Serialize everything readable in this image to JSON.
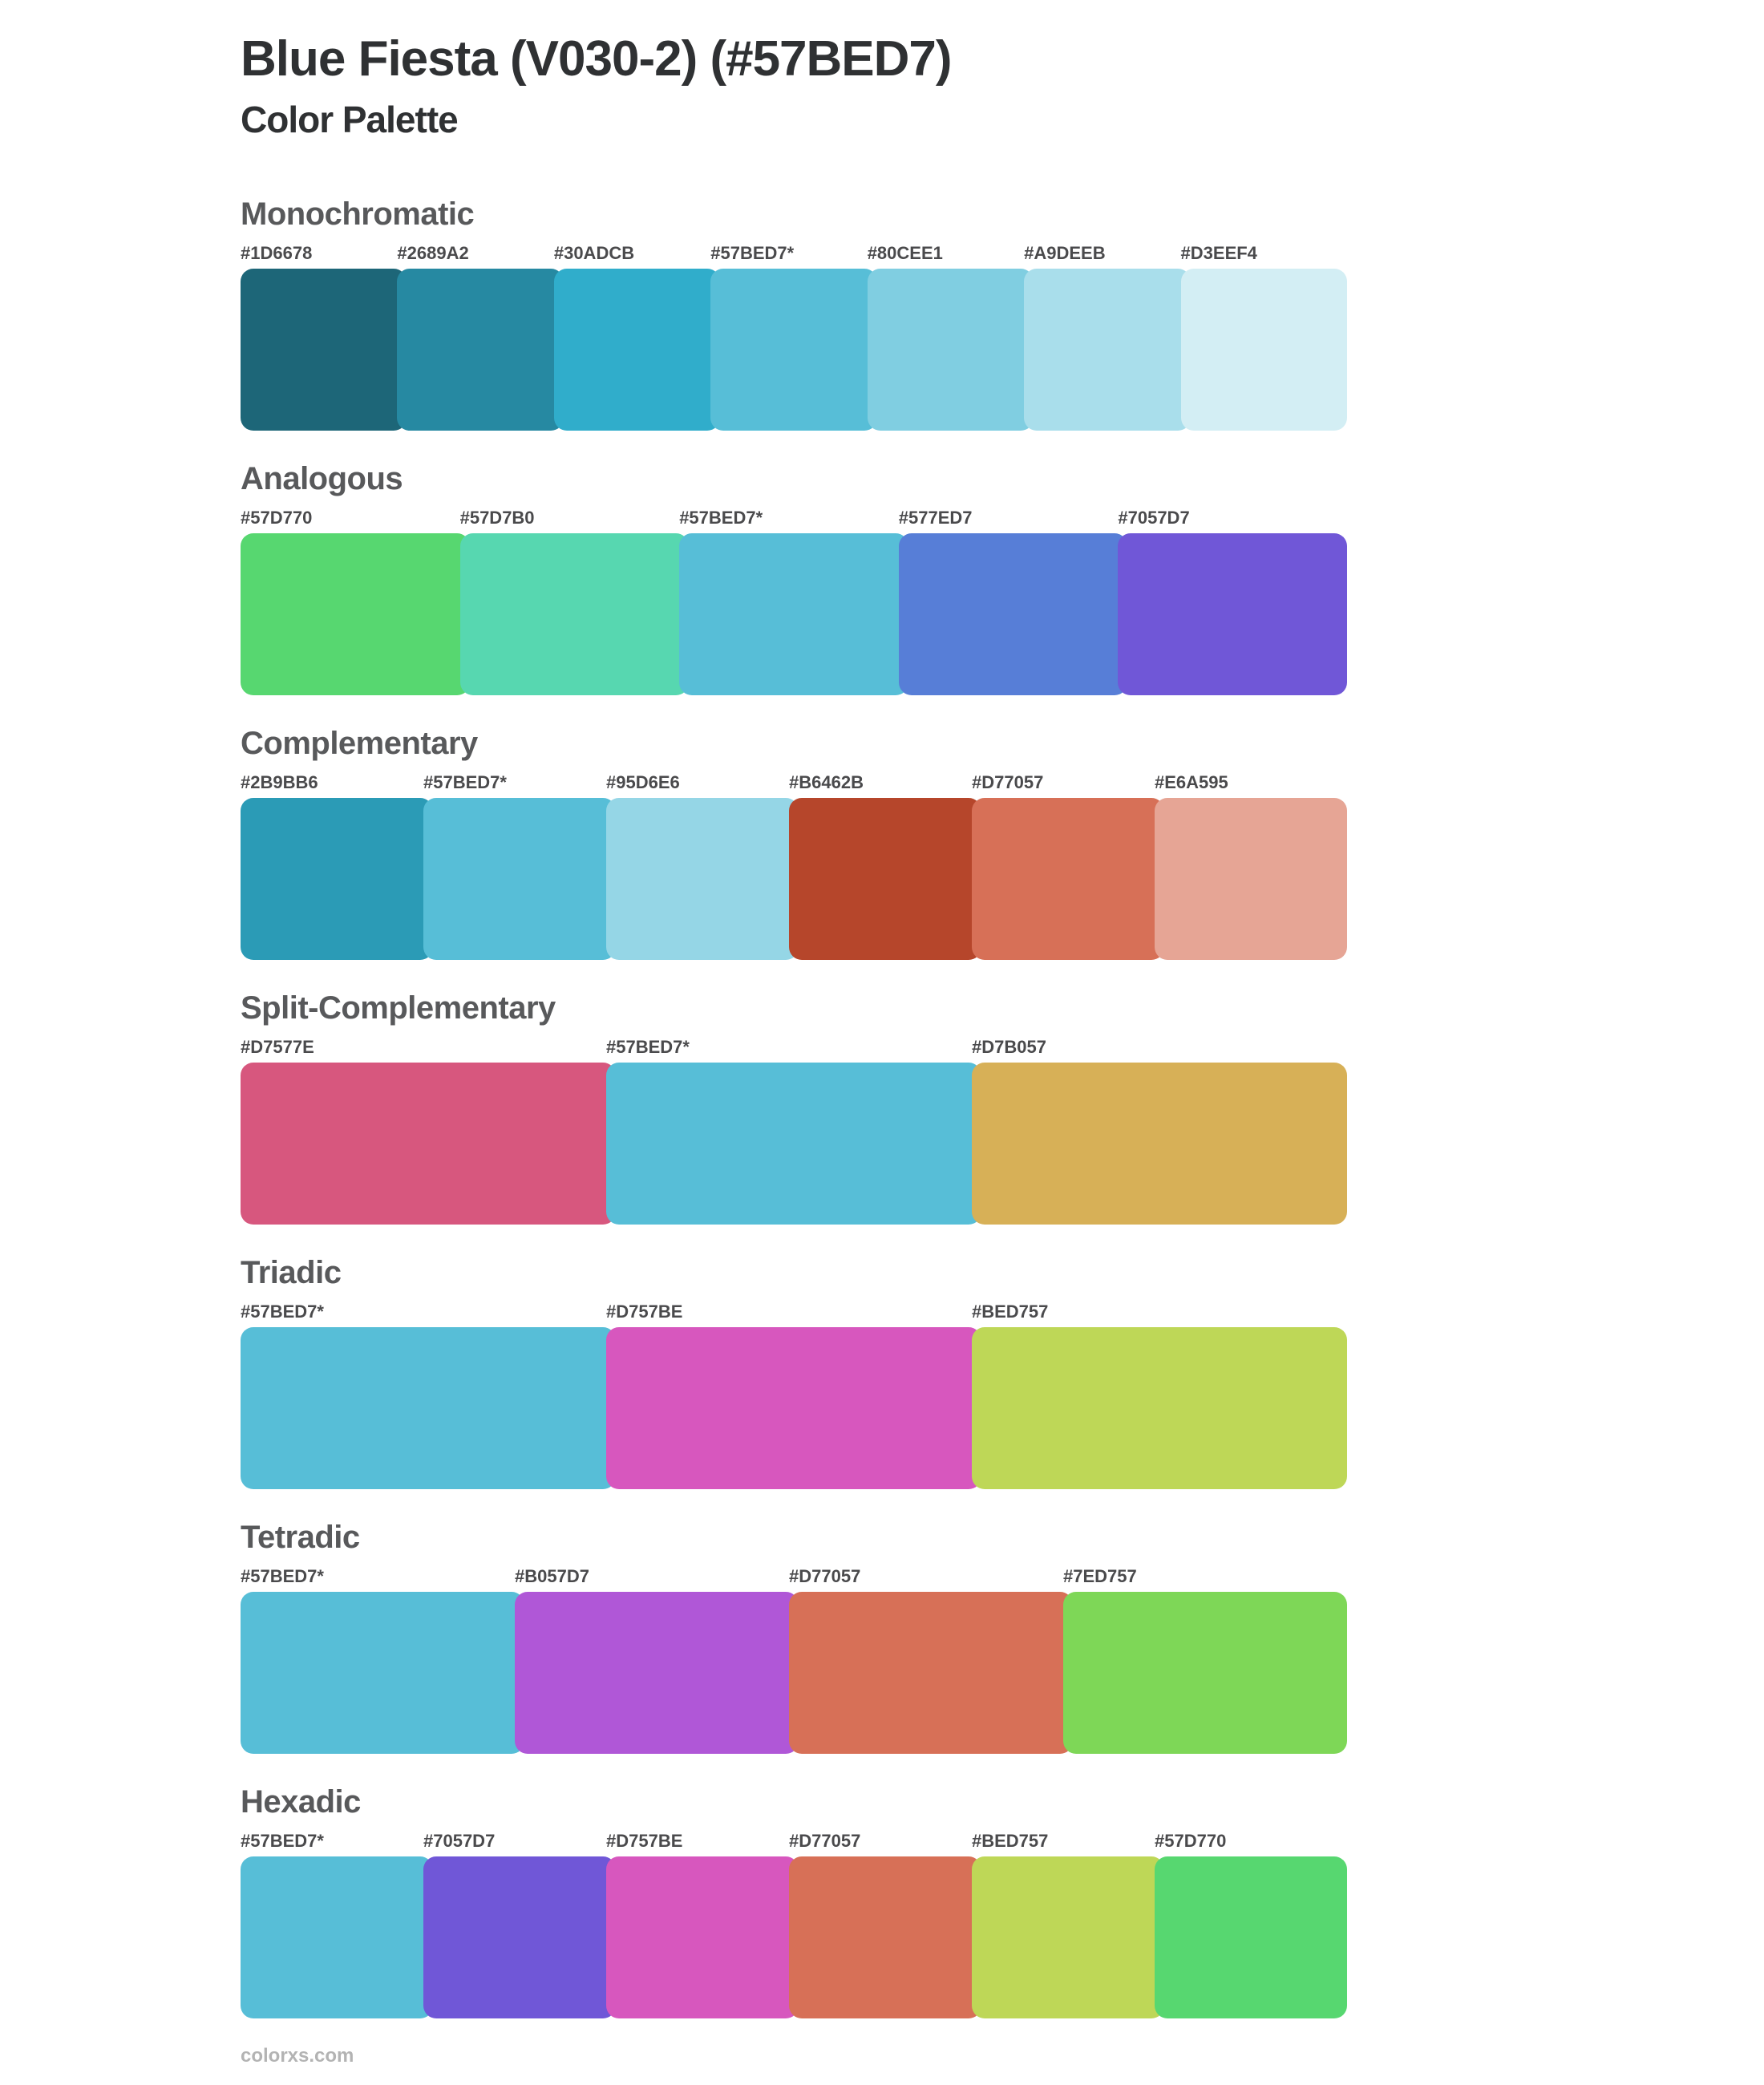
{
  "page": {
    "title": "Blue Fiesta (V030-2) (#57BED7)",
    "subtitle": "Color Palette",
    "footer": "colorxs.com",
    "base_color": "#57BED7",
    "background": "#ffffff",
    "title_color": "#2f3133",
    "heading_color": "#58595b",
    "label_color": "#4a4a4c",
    "footer_color": "#b3b3b3"
  },
  "sections": [
    {
      "name": "Monochromatic",
      "swatches": [
        {
          "label": "#1D6678",
          "color": "#1D6678"
        },
        {
          "label": "#2689A2",
          "color": "#2689A2"
        },
        {
          "label": "#30ADCB",
          "color": "#30ADCB"
        },
        {
          "label": "#57BED7*",
          "color": "#57BED7"
        },
        {
          "label": "#80CEE1",
          "color": "#80CEE1"
        },
        {
          "label": "#A9DEEB",
          "color": "#A9DEEB"
        },
        {
          "label": "#D3EEF4",
          "color": "#D3EEF4"
        }
      ]
    },
    {
      "name": "Analogous",
      "swatches": [
        {
          "label": "#57D770",
          "color": "#57D770"
        },
        {
          "label": "#57D7B0",
          "color": "#57D7B0"
        },
        {
          "label": "#57BED7*",
          "color": "#57BED7"
        },
        {
          "label": "#577ED7",
          "color": "#577ED7"
        },
        {
          "label": "#7057D7",
          "color": "#7057D7"
        }
      ]
    },
    {
      "name": "Complementary",
      "swatches": [
        {
          "label": "#2B9BB6",
          "color": "#2B9BB6"
        },
        {
          "label": "#57BED7*",
          "color": "#57BED7"
        },
        {
          "label": "#95D6E6",
          "color": "#95D6E6"
        },
        {
          "label": "#B6462B",
          "color": "#B6462B"
        },
        {
          "label": "#D77057",
          "color": "#D77057"
        },
        {
          "label": "#E6A595",
          "color": "#E6A595"
        }
      ]
    },
    {
      "name": "Split-Complementary",
      "swatches": [
        {
          "label": "#D7577E",
          "color": "#D7577E"
        },
        {
          "label": "#57BED7*",
          "color": "#57BED7"
        },
        {
          "label": "#D7B057",
          "color": "#D7B057"
        }
      ]
    },
    {
      "name": "Triadic",
      "swatches": [
        {
          "label": "#57BED7*",
          "color": "#57BED7"
        },
        {
          "label": "#D757BE",
          "color": "#D757BE"
        },
        {
          "label": "#BED757",
          "color": "#BED757"
        }
      ]
    },
    {
      "name": "Tetradic",
      "swatches": [
        {
          "label": "#57BED7*",
          "color": "#57BED7"
        },
        {
          "label": "#B057D7",
          "color": "#B057D7"
        },
        {
          "label": "#D77057",
          "color": "#D77057"
        },
        {
          "label": "#7ED757",
          "color": "#7ED757"
        }
      ]
    },
    {
      "name": "Hexadic",
      "swatches": [
        {
          "label": "#57BED7*",
          "color": "#57BED7"
        },
        {
          "label": "#7057D7",
          "color": "#7057D7"
        },
        {
          "label": "#D757BE",
          "color": "#D757BE"
        },
        {
          "label": "#D77057",
          "color": "#D77057"
        },
        {
          "label": "#BED757",
          "color": "#BED757"
        },
        {
          "label": "#57D770",
          "color": "#57D770"
        }
      ]
    }
  ]
}
